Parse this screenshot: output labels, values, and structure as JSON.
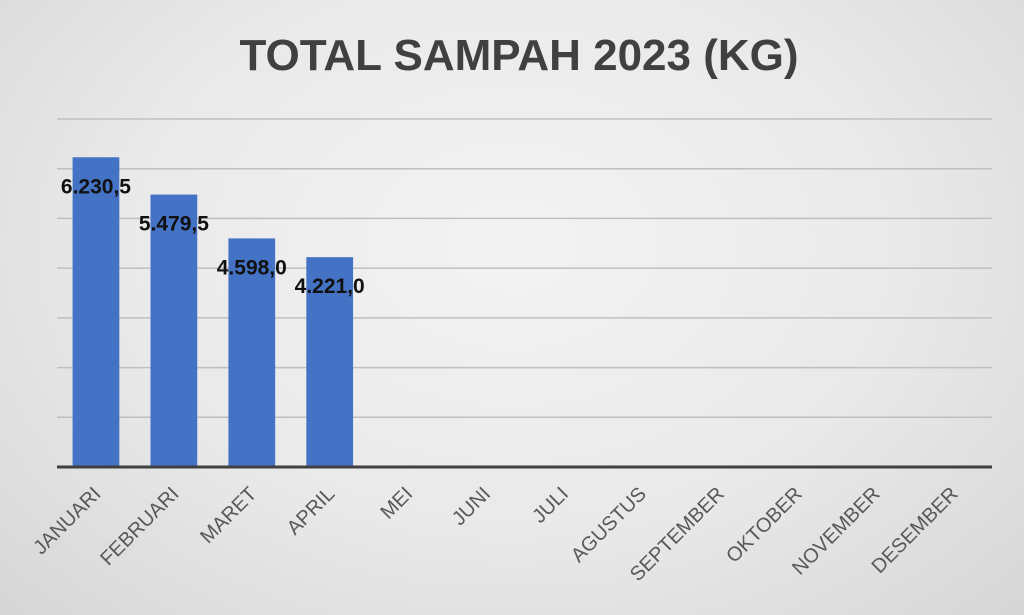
{
  "chart_data": {
    "type": "bar",
    "title": "TOTAL SAMPAH 2023 (KG)",
    "categories": [
      "JANUARI",
      "FEBRUARI",
      "MARET",
      "APRIL",
      "MEI",
      "JUNI",
      "JULI",
      "AGUSTUS",
      "SEPTEMBER",
      "OKTOBER",
      "NOVEMBER",
      "DESEMBER"
    ],
    "values": [
      6230.5,
      5479.5,
      4598.0,
      4221.0,
      null,
      null,
      null,
      null,
      null,
      null,
      null,
      null
    ],
    "data_labels": [
      "6.230,5",
      "5.479,5",
      "4.598,0",
      "4.221,0",
      "",
      "",
      "",
      "",
      "",
      "",
      "",
      ""
    ],
    "xlabel": "",
    "ylabel": "",
    "ylim": [
      0,
      7000
    ],
    "grid": true,
    "y_tick_labels_shown": false,
    "bar_color": "#4472c4"
  }
}
